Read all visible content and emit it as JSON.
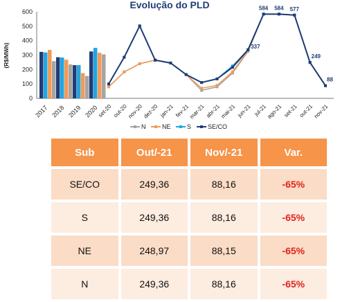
{
  "chart_data": [
    {
      "type": "bar",
      "ylabel": "(R$/MWh)",
      "ylim": [
        0,
        600
      ],
      "yticks": [
        0,
        100,
        200,
        300,
        400,
        500,
        600
      ],
      "categories": [
        "2017",
        "2018",
        "2019",
        "2020"
      ],
      "series": [
        {
          "name": "SE/CO",
          "values": [
            322,
            285,
            230,
            325
          ]
        },
        {
          "name": "S",
          "values": [
            318,
            283,
            230,
            350
          ]
        },
        {
          "name": "NE",
          "values": [
            336,
            268,
            175,
            316
          ]
        },
        {
          "name": "N",
          "values": [
            258,
            235,
            155,
            305
          ]
        }
      ]
    },
    {
      "type": "line",
      "title": "Evolução do PLD",
      "ylim": [
        0,
        600
      ],
      "x": [
        "set-20",
        "out-20",
        "nov-20",
        "dez-20",
        "jan-21",
        "fev-21",
        "mar-21",
        "abr-21",
        "mai-21",
        "jun-21",
        "jul-21",
        "ago-21",
        "set-21",
        "out-21",
        "nov-21"
      ],
      "series": [
        {
          "name": "N",
          "values": [
            80,
            183,
            240,
            265,
            245,
            165,
            55,
            80,
            175,
            325,
            584,
            584,
            577,
            249,
            88
          ]
        },
        {
          "name": "NE",
          "values": [
            80,
            183,
            240,
            265,
            245,
            165,
            70,
            90,
            185,
            330,
            584,
            584,
            577,
            249,
            88
          ]
        },
        {
          "name": "S",
          "values": [
            100,
            285,
            502,
            265,
            245,
            165,
            110,
            135,
            225,
            337,
            584,
            584,
            577,
            249,
            88
          ]
        },
        {
          "name": "SE/CO",
          "values": [
            100,
            285,
            502,
            265,
            245,
            165,
            110,
            135,
            215,
            337,
            584,
            584,
            577,
            249,
            88
          ]
        }
      ],
      "data_labels": [
        {
          "x": "jun-21",
          "text": "337"
        },
        {
          "x": "jul-21",
          "text": "584"
        },
        {
          "x": "ago-21",
          "text": "584"
        },
        {
          "x": "set-21",
          "text": "577"
        },
        {
          "x": "out-21",
          "text": "249"
        },
        {
          "x": "nov-21",
          "text": "88"
        }
      ],
      "legend": [
        "N",
        "NE",
        "S",
        "SE/CO"
      ],
      "legend_position": "bottom"
    }
  ],
  "colors": {
    "N": "#a5a5a5",
    "NE": "#f29b55",
    "S": "#21a6e2",
    "SE/CO": "#1f3c75",
    "header": "#f6944a",
    "var_text": "#e2231a"
  },
  "table": {
    "headers": [
      "Sub",
      "Out/-21",
      "Nov/-21",
      "Var."
    ],
    "rows": [
      {
        "sub": "SE/CO",
        "out": "249,36",
        "nov": "88,16",
        "var": "-65%"
      },
      {
        "sub": "S",
        "out": "249,36",
        "nov": "88,16",
        "var": "-65%"
      },
      {
        "sub": "NE",
        "out": "248,97",
        "nov": "88,15",
        "var": "-65%"
      },
      {
        "sub": "N",
        "out": "249,36",
        "nov": "88,16",
        "var": "-65%"
      }
    ]
  }
}
